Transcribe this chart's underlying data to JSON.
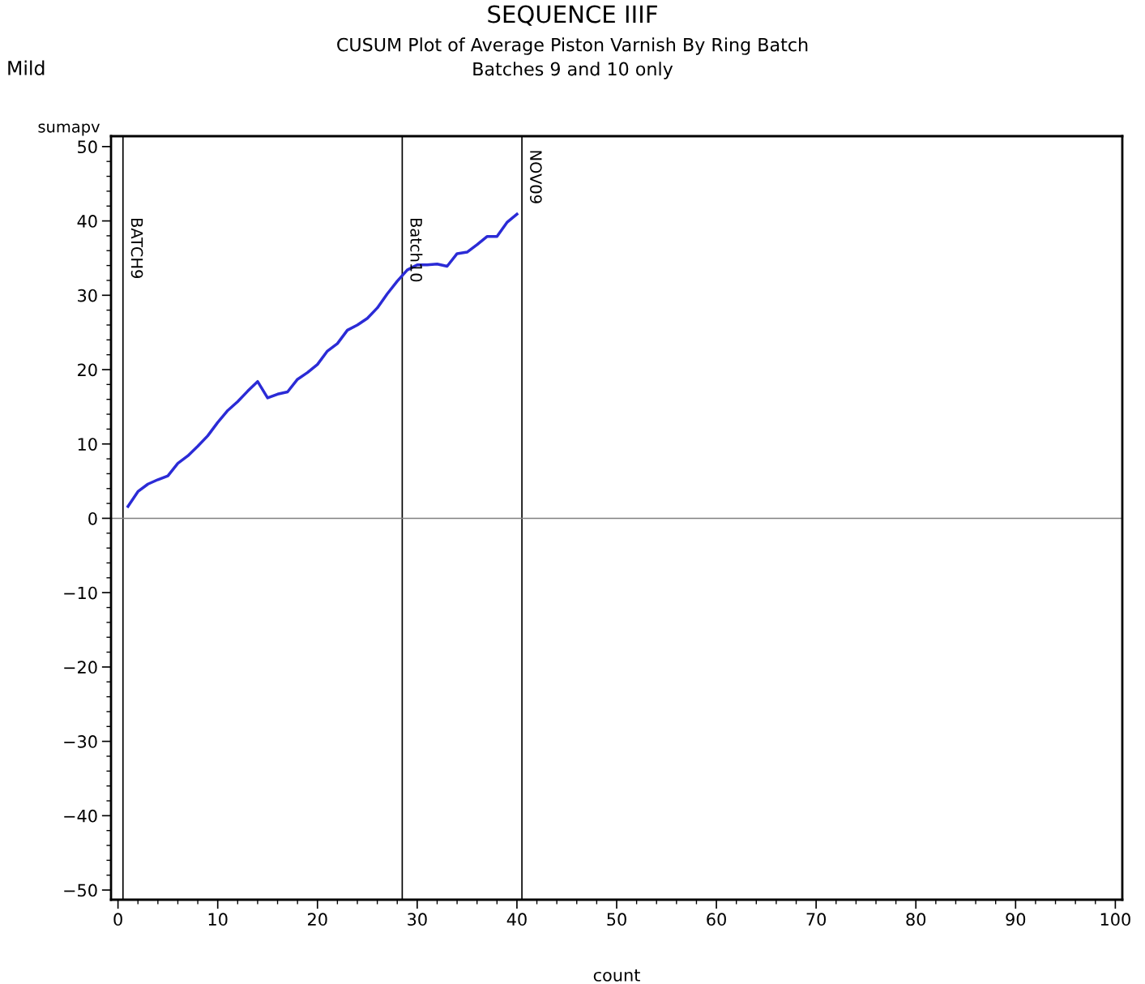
{
  "chart_data": {
    "type": "line",
    "title": "SEQUENCE IIIF",
    "subtitle": "CUSUM Plot of Average Piston Varnish By Ring Batch\nBatches 9 and 10 only",
    "xlabel": "count",
    "ylabel": "sumapv",
    "annotations": [
      "Mild"
    ],
    "x": [
      1,
      2,
      3,
      4,
      5,
      6,
      7,
      8,
      9,
      10,
      11,
      12,
      13,
      14,
      15,
      16,
      17,
      18,
      19,
      20,
      21,
      22,
      23,
      24,
      25,
      26,
      27,
      28,
      29,
      30,
      31,
      32,
      33,
      34,
      35,
      36,
      37,
      38,
      39,
      40
    ],
    "series": [
      {
        "color": "#2b2bd6",
        "values": [
          1.6,
          3.6,
          4.6,
          5.2,
          5.7,
          7.4,
          8.4,
          9.7,
          11.1,
          12.9,
          14.5,
          15.7,
          17.1,
          18.4,
          16.2,
          16.7,
          17.0,
          18.7,
          19.6,
          20.7,
          22.5,
          23.5,
          25.3,
          26.0,
          26.9,
          28.3,
          30.2,
          31.9,
          33.4,
          34.1,
          34.1,
          34.2,
          33.9,
          35.6,
          35.8,
          36.8,
          37.9,
          37.9,
          39.8,
          40.9
        ]
      }
    ],
    "ref_lines": [
      {
        "axis": "x",
        "value": 0.5,
        "label": "BATCH9",
        "color": "#000000"
      },
      {
        "axis": "x",
        "value": 28.5,
        "label": "Batch10",
        "color": "#000000"
      },
      {
        "axis": "x",
        "value": 40.5,
        "label": "NOV09",
        "color": "#000000"
      },
      {
        "axis": "y",
        "value": 0,
        "color": "#808080"
      }
    ],
    "xlim": [
      -0.7,
      100.7
    ],
    "ylim": [
      -51.3,
      51.4
    ],
    "xticks": [
      0,
      10,
      20,
      30,
      40,
      50,
      60,
      70,
      80,
      90,
      100
    ],
    "yticks": [
      {
        "value": 50,
        "label": "50"
      },
      {
        "value": 40,
        "label": "40"
      },
      {
        "value": 30,
        "label": "30"
      },
      {
        "value": 20,
        "label": "20"
      },
      {
        "value": 10,
        "label": "10"
      },
      {
        "value": 0,
        "label": "0"
      },
      {
        "value": -10,
        "label": "−10"
      },
      {
        "value": -20,
        "label": "−20"
      },
      {
        "value": -30,
        "label": "−30"
      },
      {
        "value": -40,
        "label": "−40"
      },
      {
        "value": -50,
        "label": "−50"
      }
    ],
    "grid": false,
    "legend": false,
    "marker": "none",
    "line_style": "solid"
  }
}
